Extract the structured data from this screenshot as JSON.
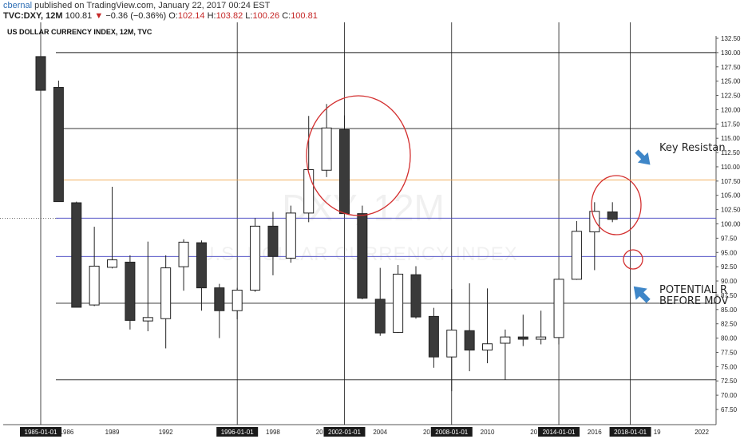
{
  "header": {
    "author": "cbernal",
    "published": "published on TradingView.com, January 22, 2017 00:24 EST",
    "symbol": "TVC:DXY, 12M",
    "close_value": "100.81",
    "change_arrow": "▼",
    "change": "−0.36 (−0.36%)",
    "ohlc": [
      {
        "label": "O:",
        "value": "102.14"
      },
      {
        "label": "H:",
        "value": "103.82"
      },
      {
        "label": "L:",
        "value": "100.26"
      },
      {
        "label": "C:",
        "value": "100.81"
      }
    ]
  },
  "chart_data": {
    "type": "candlestick",
    "title": "US DOLLAR CURRENCY INDEX, 12M, TVC",
    "watermark_symbol": "DXY, 12M",
    "watermark_name": "U.S. DOLLAR CURRENCY INDEX",
    "ylim": [
      67.5,
      132.5
    ],
    "y_ticks": [
      "132.50",
      "130.00",
      "127.50",
      "125.00",
      "122.50",
      "120.00",
      "117.50",
      "115.00",
      "112.50",
      "110.00",
      "107.50",
      "105.00",
      "102.50",
      "100.00",
      "97.50",
      "95.00",
      "92.50",
      "90.00",
      "87.50",
      "85.00",
      "82.50",
      "80.00",
      "77.50",
      "75.00",
      "72.50",
      "70.00",
      "67.50"
    ],
    "x_ticks": [
      {
        "label": "1985-01-01",
        "x": 1985,
        "highlight": true
      },
      {
        "label": "1986",
        "x": 1986.45
      },
      {
        "label": "1989",
        "x": 1989
      },
      {
        "label": "1992",
        "x": 1992
      },
      {
        "label": "1996-01-01",
        "x": 1996,
        "highlight": true
      },
      {
        "label": "1998",
        "x": 1998
      },
      {
        "label": "2002-01-01",
        "x": 2002,
        "highlight": true
      },
      {
        "label": "2004",
        "x": 2004
      },
      {
        "label": "2008-01-01",
        "x": 2008,
        "highlight": true
      },
      {
        "label": "2010",
        "x": 2010
      },
      {
        "label": "2014-01-01",
        "x": 2014,
        "highlight": true
      },
      {
        "label": "2016",
        "x": 2016
      },
      {
        "label": "2018-01-01",
        "x": 2018,
        "highlight": true
      },
      {
        "label": "2022",
        "x": 2022
      }
    ],
    "x_partial_labels": [
      {
        "label": "20",
        "x": 2000.6
      },
      {
        "label": "20",
        "x": 2006.6
      },
      {
        "label": "20",
        "x": 2012.6
      },
      {
        "label": "19",
        "x": 2019.5
      }
    ],
    "x_range": [
      1982.9,
      2022.8
    ],
    "candles": [
      {
        "year": 1985,
        "open": 129.3,
        "high": 129.3,
        "low": 123.4,
        "close": 123.4
      },
      {
        "year": 1986,
        "open": 123.9,
        "high": 125.1,
        "low": 103.9,
        "close": 103.9
      },
      {
        "year": 1987,
        "open": 103.7,
        "high": 103.9,
        "low": 85.4,
        "close": 85.4
      },
      {
        "year": 1988,
        "open": 85.8,
        "high": 99.5,
        "low": 85.6,
        "close": 92.6
      },
      {
        "year": 1989,
        "open": 92.4,
        "high": 106.5,
        "low": 92.2,
        "close": 93.7
      },
      {
        "year": 1990,
        "open": 93.3,
        "high": 94.5,
        "low": 81.5,
        "close": 83.1
      },
      {
        "year": 1991,
        "open": 83.0,
        "high": 96.9,
        "low": 81.2,
        "close": 83.6
      },
      {
        "year": 1992,
        "open": 83.4,
        "high": 94.5,
        "low": 78.2,
        "close": 92.3
      },
      {
        "year": 1993,
        "open": 92.5,
        "high": 97.3,
        "low": 88.3,
        "close": 96.8
      },
      {
        "year": 1994,
        "open": 96.7,
        "high": 97.1,
        "low": 84.8,
        "close": 88.8
      },
      {
        "year": 1995,
        "open": 88.8,
        "high": 89.5,
        "low": 80.0,
        "close": 84.8
      },
      {
        "year": 1996,
        "open": 84.8,
        "high": 88.8,
        "low": 83.3,
        "close": 88.4
      },
      {
        "year": 1997,
        "open": 88.4,
        "high": 101.0,
        "low": 88.1,
        "close": 99.6
      },
      {
        "year": 1998,
        "open": 99.6,
        "high": 102.1,
        "low": 91.0,
        "close": 94.3
      },
      {
        "year": 1999,
        "open": 94.0,
        "high": 103.2,
        "low": 93.2,
        "close": 101.9
      },
      {
        "year": 2000,
        "open": 101.9,
        "high": 118.9,
        "low": 100.3,
        "close": 109.5
      },
      {
        "year": 2001,
        "open": 109.4,
        "high": 121.0,
        "low": 108.2,
        "close": 116.8
      },
      {
        "year": 2002,
        "open": 116.5,
        "high": 119.0,
        "low": 101.8,
        "close": 101.8
      },
      {
        "year": 2003,
        "open": 101.8,
        "high": 103.2,
        "low": 86.8,
        "close": 87.0
      },
      {
        "year": 2004,
        "open": 86.8,
        "high": 92.3,
        "low": 80.4,
        "close": 80.9
      },
      {
        "year": 2005,
        "open": 81.0,
        "high": 92.8,
        "low": 80.9,
        "close": 91.2
      },
      {
        "year": 2006,
        "open": 91.1,
        "high": 92.6,
        "low": 83.4,
        "close": 83.7
      },
      {
        "year": 2007,
        "open": 83.8,
        "high": 85.3,
        "low": 74.8,
        "close": 76.7
      },
      {
        "year": 2008,
        "open": 76.7,
        "high": 88.6,
        "low": 70.7,
        "close": 81.4
      },
      {
        "year": 2009,
        "open": 81.3,
        "high": 89.6,
        "low": 74.2,
        "close": 77.9
      },
      {
        "year": 2010,
        "open": 77.9,
        "high": 88.7,
        "low": 75.6,
        "close": 79.0
      },
      {
        "year": 2011,
        "open": 79.1,
        "high": 81.5,
        "low": 72.7,
        "close": 80.2
      },
      {
        "year": 2012,
        "open": 80.2,
        "high": 84.1,
        "low": 78.6,
        "close": 79.8
      },
      {
        "year": 2013,
        "open": 79.8,
        "high": 84.8,
        "low": 78.9,
        "close": 80.2
      },
      {
        "year": 2014,
        "open": 80.1,
        "high": 90.3,
        "low": 78.9,
        "close": 90.3
      },
      {
        "year": 2015,
        "open": 90.3,
        "high": 100.5,
        "low": 90.2,
        "close": 98.7
      },
      {
        "year": 2016,
        "open": 98.6,
        "high": 103.8,
        "low": 91.9,
        "close": 102.2
      },
      {
        "year": 2017,
        "open": 102.1,
        "high": 103.8,
        "low": 100.3,
        "close": 100.8
      }
    ],
    "horizontal_lines": [
      {
        "value": 130.0,
        "color": "#1a1a1a"
      },
      {
        "value": 116.7,
        "color": "#1a1a1a"
      },
      {
        "value": 107.7,
        "color": "#f0a64a"
      },
      {
        "value": 101.0,
        "color": "#3f3fbf"
      },
      {
        "value": 94.3,
        "color": "#3f3fbf"
      },
      {
        "value": 86.1,
        "color": "#1a1a1a"
      },
      {
        "value": 72.7,
        "color": "#1a1a1a"
      }
    ],
    "dotted_line_value": 101.0,
    "vertical_lines": [
      1985,
      1996,
      2002,
      2008,
      2014,
      2018
    ],
    "annotations": {
      "key_resistance": "Key Resistan",
      "potential_line1": "POTENTIAL R",
      "potential_line2": "BEFORE MOV",
      "arrow_color": "#3e86c8",
      "circle_color": "#d32f2f"
    }
  }
}
